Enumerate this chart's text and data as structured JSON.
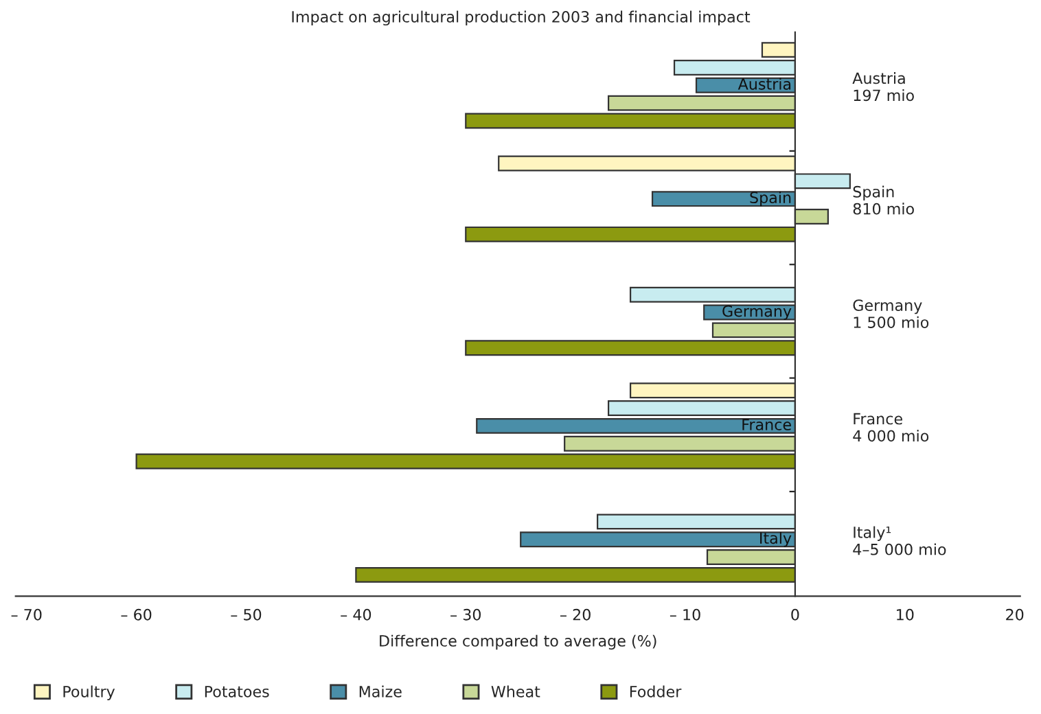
{
  "chart_data": {
    "type": "bar",
    "orientation": "horizontal",
    "title": "Impact on agricultural production 2003 and financial impact",
    "xlabel": "Difference compared to average (%)",
    "categories": [
      "Austria\n197 mio",
      "Spain\n810 mio",
      "Germany\n1 500 mio",
      "France\n4 000 mio",
      "Italy¹\n4–5 000 mio"
    ],
    "series": [
      {
        "name": "Poultry",
        "color": "#fff5c0",
        "values": [
          -3,
          -27,
          null,
          -15,
          null
        ]
      },
      {
        "name": "Potatoes",
        "color": "#c8ecf0",
        "values": [
          -11,
          5,
          -15,
          -17,
          -18
        ]
      },
      {
        "name": "Maize",
        "color": "#4a8ea8",
        "values": [
          -9,
          -13,
          -8.3,
          -29,
          -25
        ]
      },
      {
        "name": "Wheat",
        "color": "#c8d898",
        "values": [
          -17,
          3,
          -7.5,
          -21,
          -8
        ]
      },
      {
        "name": "Fodder",
        "color": "#8c9a10",
        "values": [
          -30,
          -30,
          -30,
          -60,
          -40
        ]
      }
    ],
    "annotations": [
      "Austria",
      "Spain",
      "Germany",
      "France",
      "Italy"
    ],
    "xlim": [
      -71,
      20.5
    ],
    "xticks": [
      {
        "value": -70,
        "label": "– 70"
      },
      {
        "value": -60,
        "label": "– 60"
      },
      {
        "value": -50,
        "label": "– 50"
      },
      {
        "value": -40,
        "label": "– 40"
      },
      {
        "value": -30,
        "label": "– 30"
      },
      {
        "value": -20,
        "label": "– 20"
      },
      {
        "value": -10,
        "label": "– 10"
      },
      0,
      10,
      20
    ],
    "legend": "bottom"
  }
}
